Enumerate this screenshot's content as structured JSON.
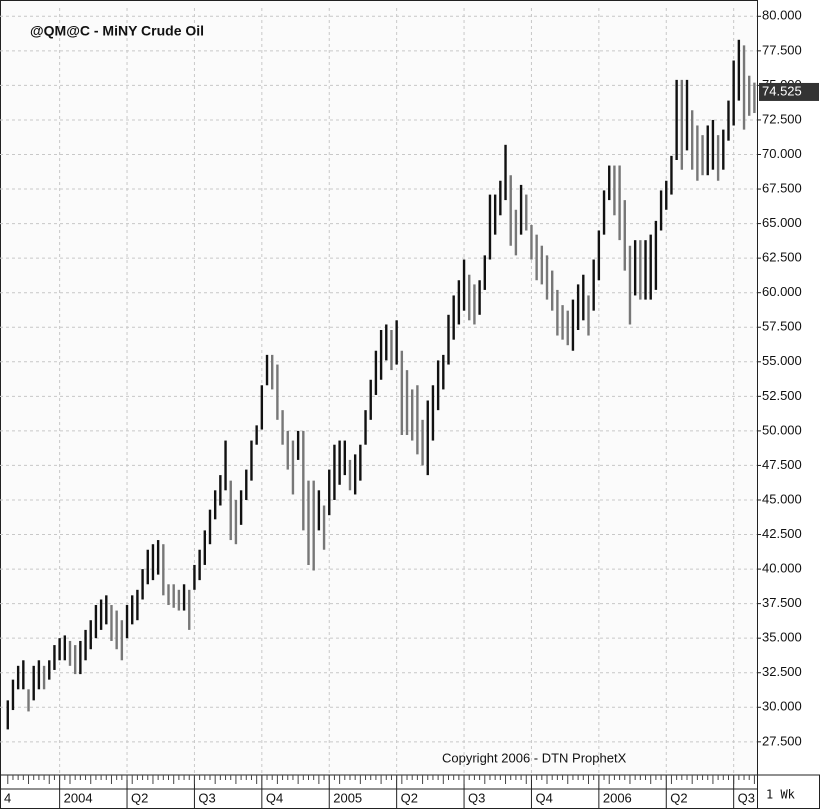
{
  "chart_data": {
    "type": "range-bar",
    "title": "@QM@C - MiNY Crude Oil",
    "annotation": "Copyright 2006 - DTN ProphetX",
    "period": "1 Wk",
    "ylim": [
      25.1,
      80.6
    ],
    "xlim": [
      -1.5,
      144.5
    ],
    "grid": true,
    "color": "#111111",
    "down_color": "#777777",
    "yticks": [
      {
        "value": 27.5,
        "label": "27.500"
      },
      {
        "value": 30,
        "label": "30.000"
      },
      {
        "value": 32.5,
        "label": "32.500"
      },
      {
        "value": 35,
        "label": "35.000"
      },
      {
        "value": 37.5,
        "label": "37.500"
      },
      {
        "value": 40,
        "label": "40.000"
      },
      {
        "value": 42.5,
        "label": "42.500"
      },
      {
        "value": 45,
        "label": "45.000"
      },
      {
        "value": 47.5,
        "label": "47.500"
      },
      {
        "value": 50,
        "label": "50.000"
      },
      {
        "value": 52.5,
        "label": "52.500"
      },
      {
        "value": 55,
        "label": "55.000"
      },
      {
        "value": 57.5,
        "label": "57.500"
      },
      {
        "value": 60,
        "label": "60.000"
      },
      {
        "value": 62.5,
        "label": "62.500"
      },
      {
        "value": 65,
        "label": "65.000"
      },
      {
        "value": 67.5,
        "label": "67.500"
      },
      {
        "value": 70,
        "label": "70.000"
      },
      {
        "value": 72.5,
        "label": "72.500"
      },
      {
        "value": 75,
        "label": "75.000"
      },
      {
        "value": 77.5,
        "label": "77.500"
      },
      {
        "value": 80,
        "label": "80.000"
      }
    ],
    "xticks": [
      {
        "value": -2,
        "label": "4"
      },
      {
        "value": 10,
        "label": "2004"
      },
      {
        "value": 23,
        "label": "Q2"
      },
      {
        "value": 36,
        "label": "Q3"
      },
      {
        "value": 49,
        "label": "Q4"
      },
      {
        "value": 62,
        "label": "2005"
      },
      {
        "value": 75,
        "label": "Q2"
      },
      {
        "value": 88,
        "label": "Q3"
      },
      {
        "value": 101,
        "label": "Q4"
      },
      {
        "value": 114,
        "label": "2006"
      },
      {
        "value": 127,
        "label": "Q2"
      },
      {
        "value": 140,
        "label": "Q3"
      }
    ],
    "last": {
      "value": 74.525,
      "label": "74.525"
    },
    "high": [
      30.5,
      32,
      33,
      33.4,
      31.3,
      33,
      33.4,
      33,
      33.4,
      34.5,
      35,
      35.2,
      34.8,
      34.5,
      34.8,
      35.6,
      36.3,
      37.4,
      37.8,
      38.1,
      37.4,
      37,
      36.3,
      37.4,
      38.1,
      38.5,
      40,
      41.4,
      41.8,
      42.1,
      41.8,
      38.9,
      38.9,
      38.5,
      38.9,
      38.5,
      40.3,
      41.4,
      42.8,
      44.3,
      45.7,
      46.8,
      49.3,
      46.4,
      45,
      45.7,
      47.2,
      49.3,
      50.4,
      53.3,
      55.5,
      55.5,
      54.8,
      51.5,
      50,
      49.3,
      50,
      50,
      46.4,
      46.4,
      45.7,
      44.6,
      47.2,
      49,
      49.3,
      49.3,
      47.9,
      48.3,
      49,
      51.5,
      53.7,
      55.8,
      57.3,
      57.7,
      57.3,
      58,
      55.8,
      54.4,
      53,
      53.3,
      50.8,
      52.2,
      53.3,
      55.1,
      55.5,
      58.4,
      59.8,
      60.9,
      62.4,
      61.3,
      60.6,
      60.9,
      62.7,
      67.1,
      67.1,
      68.1,
      70.7,
      68.5,
      66,
      67.8,
      67.1,
      64.9,
      64.2,
      63.4,
      62.7,
      61.6,
      60.2,
      59.1,
      58.7,
      59.5,
      60.6,
      61.3,
      59.8,
      62.4,
      64.5,
      67.4,
      69.2,
      69.2,
      69.2,
      66.7,
      63.4,
      63.8,
      63.8,
      63.8,
      64.2,
      65.2,
      67.4,
      68.1,
      69.9,
      75.4,
      75.4,
      75.4,
      73.2,
      72.1,
      71.4,
      72.1,
      72.5,
      71.4,
      71.8,
      73.9,
      76.8,
      78.3,
      77.9,
      75.7,
      75.2
    ],
    "low": [
      28.4,
      29.8,
      31.3,
      31.3,
      29.7,
      30.5,
      31.3,
      31.3,
      32,
      32.7,
      33.4,
      33.4,
      33,
      32.4,
      32.4,
      33.4,
      34.2,
      35,
      35.6,
      36,
      34.8,
      34.2,
      33.4,
      35,
      36,
      36.3,
      37.8,
      38.9,
      39.2,
      39.6,
      38.1,
      37.4,
      37.2,
      37,
      37,
      35.6,
      38.5,
      39.2,
      40.3,
      41.8,
      43.6,
      44.6,
      45.7,
      42.1,
      41.8,
      43.2,
      45,
      46.4,
      49,
      50.1,
      53.3,
      53,
      50.8,
      49,
      47.2,
      45.4,
      47.9,
      42.8,
      40.3,
      39.9,
      42.8,
      41.4,
      43.9,
      45,
      46.1,
      46.8,
      45.7,
      45.4,
      46.4,
      49,
      50.8,
      52.6,
      53.7,
      55.1,
      54.4,
      54.8,
      49.7,
      49.7,
      49.3,
      48.3,
      47.5,
      46.8,
      49.3,
      51.5,
      53,
      54.8,
      56.6,
      57.7,
      58.7,
      58,
      57.7,
      58.4,
      60.2,
      62.4,
      64.2,
      65.6,
      66.7,
      63.4,
      62.7,
      64.2,
      64.5,
      62.4,
      60.9,
      60.6,
      59.5,
      58.7,
      56.9,
      56.6,
      56.2,
      55.8,
      57.3,
      58,
      56.9,
      58.7,
      60.9,
      64.2,
      66.7,
      65.6,
      63.8,
      61.6,
      57.7,
      59.8,
      59.5,
      59.5,
      59.5,
      60.2,
      64.5,
      66,
      67.1,
      69.6,
      68.9,
      70.3,
      68.9,
      68.1,
      68.5,
      68.5,
      68.9,
      68.1,
      68.9,
      71,
      72.1,
      73.9,
      71.8,
      72.8,
      73
    ]
  }
}
